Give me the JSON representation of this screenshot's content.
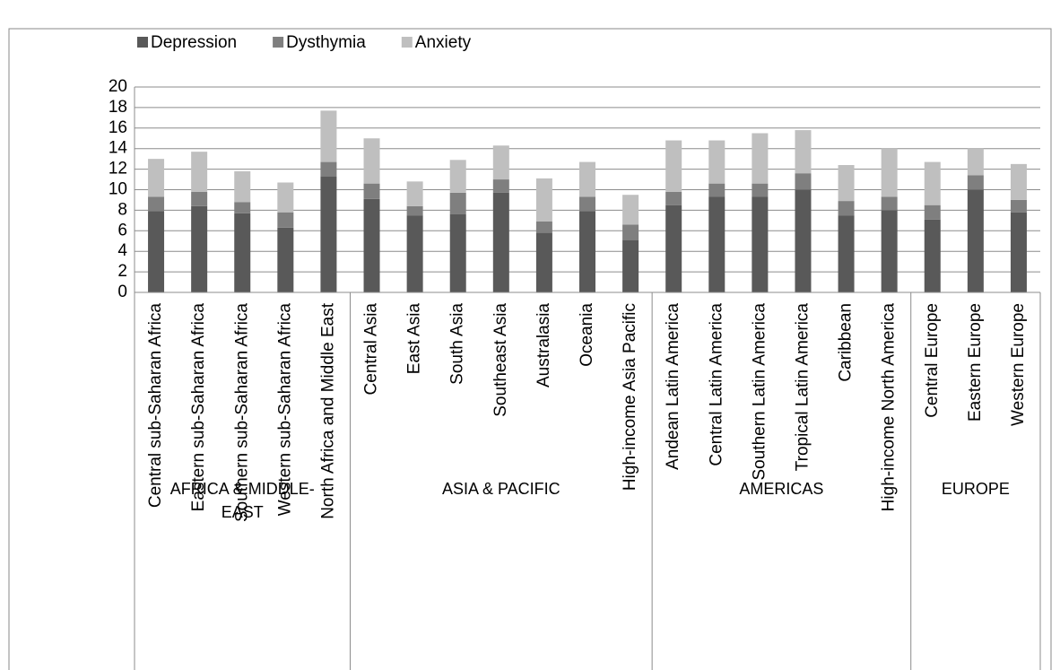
{
  "chart_data": {
    "type": "stacked_bar",
    "groups": [
      {
        "label": "AFRICA & MIDDLE-EAST",
        "categories": [
          "Central sub-Saharan Africa",
          "Eastern sub-Saharan Africa",
          "Southern sub-Saharan Africa",
          "Western sub-Saharan Africa",
          "North Africa and Middle East"
        ]
      },
      {
        "label": "ASIA & PACIFIC",
        "categories": [
          "Central Asia",
          "East Asia",
          "South Asia",
          "Southeast Asia",
          "Australasia",
          "Oceania",
          "High-income Asia Pacific"
        ]
      },
      {
        "label": "AMERICAS",
        "categories": [
          "Andean Latin America",
          "Central Latin America",
          "Southern Latin America",
          "Tropical Latin America",
          "Caribbean",
          "High-income North America"
        ]
      },
      {
        "label": "EUROPE",
        "categories": [
          "Central Europe",
          "Eastern Europe",
          "Western Europe"
        ]
      }
    ],
    "series": [
      {
        "name": "Depression",
        "color": "#595959",
        "values": [
          7.9,
          8.4,
          7.7,
          6.3,
          11.3,
          9.1,
          7.5,
          7.6,
          9.7,
          5.8,
          7.9,
          5.1,
          8.5,
          9.3,
          9.3,
          10.0,
          7.5,
          8.0,
          7.1,
          10.0,
          7.8
        ]
      },
      {
        "name": "Dysthymia",
        "color": "#7f7f7f",
        "values": [
          1.4,
          1.4,
          1.1,
          1.5,
          1.4,
          1.5,
          0.9,
          2.1,
          1.3,
          1.1,
          1.4,
          1.5,
          1.3,
          1.3,
          1.3,
          1.6,
          1.4,
          1.3,
          1.4,
          1.4,
          1.2
        ]
      },
      {
        "name": "Anxiety",
        "color": "#bfbfbf",
        "values": [
          3.7,
          3.9,
          3.0,
          2.9,
          5.0,
          4.4,
          2.4,
          3.2,
          3.3,
          4.2,
          3.4,
          2.9,
          5.0,
          4.2,
          4.9,
          4.2,
          3.5,
          4.7,
          4.2,
          2.6,
          3.5
        ]
      }
    ],
    "ylim": [
      0,
      20
    ],
    "yticks": [
      0,
      2,
      4,
      6,
      8,
      10,
      12,
      14,
      16,
      18,
      20
    ],
    "grid": true,
    "legend": "top"
  }
}
